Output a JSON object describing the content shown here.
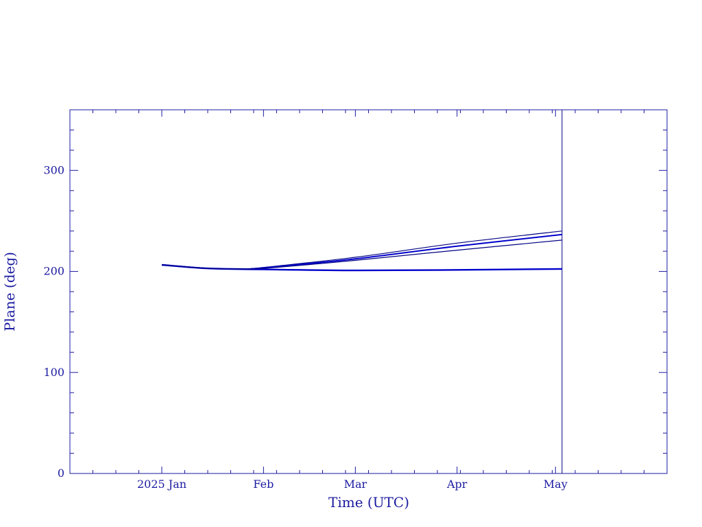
{
  "chart_data": {
    "type": "line",
    "title": "",
    "xlabel": "Time (UTC)",
    "ylabel": "Plane (deg)",
    "xlim": [
      "2024-12-04",
      "2025-06-04"
    ],
    "ylim": [
      0,
      360
    ],
    "x_ticks": [
      {
        "date": "2025-01-01",
        "label": "2025 Jan"
      },
      {
        "date": "2025-02-01",
        "label": "Feb"
      },
      {
        "date": "2025-03-01",
        "label": "Mar"
      },
      {
        "date": "2025-04-01",
        "label": "Apr"
      },
      {
        "date": "2025-05-01",
        "label": "May"
      }
    ],
    "y_ticks": [
      0,
      100,
      200,
      300
    ],
    "grid": false,
    "marker_line": {
      "date": "2025-05-03"
    },
    "series": [
      {
        "color": "#0000cc",
        "width": 2.4,
        "x": [
          "2025-01-01",
          "2025-01-15",
          "2025-02-01",
          "2025-03-01",
          "2025-04-01",
          "2025-05-03"
        ],
        "y": [
          206.5,
          203.0,
          202.0,
          201.0,
          201.5,
          202.5
        ]
      },
      {
        "color": "#000080",
        "width": 1.2,
        "x": [
          "2025-01-01",
          "2025-01-15",
          "2025-01-25",
          "2025-02-01",
          "2025-03-01",
          "2025-04-01",
          "2025-05-03"
        ],
        "y": [
          206.5,
          203.0,
          202.5,
          204.0,
          214.0,
          228.0,
          240.0
        ]
      },
      {
        "color": "#0000cc",
        "width": 2.0,
        "x": [
          "2025-01-01",
          "2025-01-15",
          "2025-01-25",
          "2025-02-01",
          "2025-03-01",
          "2025-04-01",
          "2025-05-03"
        ],
        "y": [
          206.5,
          203.0,
          202.5,
          203.5,
          212.5,
          225.0,
          236.5
        ]
      },
      {
        "color": "#000080",
        "width": 1.2,
        "x": [
          "2025-01-01",
          "2025-01-15",
          "2025-01-25",
          "2025-02-01",
          "2025-03-01",
          "2025-04-01",
          "2025-05-03"
        ],
        "y": [
          206.5,
          203.0,
          202.5,
          203.0,
          211.0,
          221.0,
          231.0
        ]
      }
    ],
    "axis_color": "#1a1aa0"
  }
}
